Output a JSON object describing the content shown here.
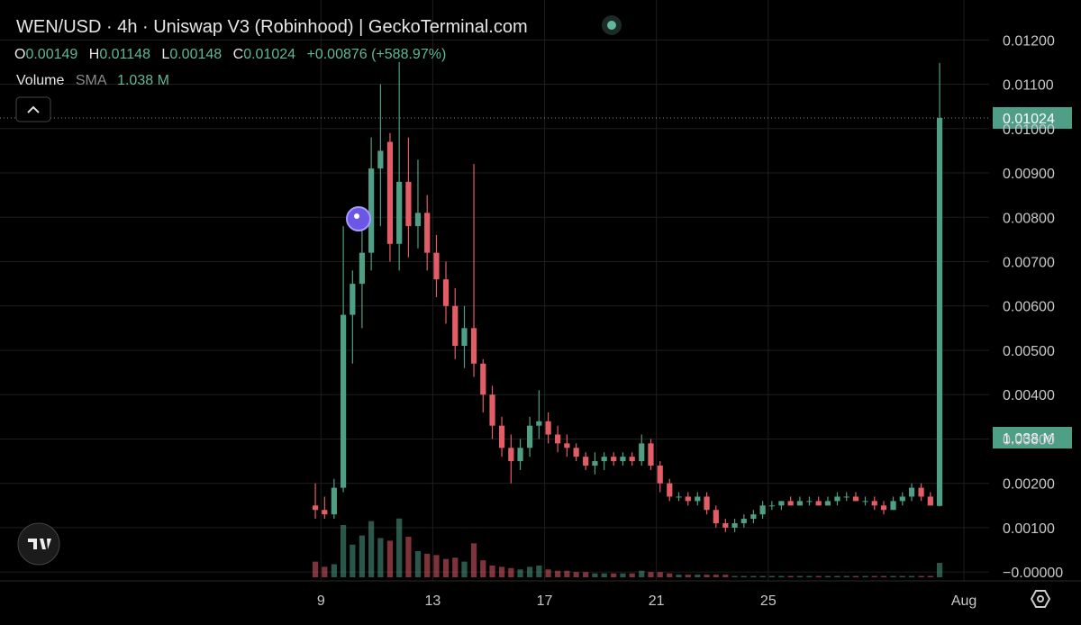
{
  "chart_data": {
    "type": "candlestick",
    "title": "WEN/USD · 4h · Uniswap V3 (Robinhood) | GeckoTerminal.com",
    "ohlc_keys": [
      "O",
      "H",
      "L",
      "C"
    ],
    "change_label": "+0.00876 (+588.97%)",
    "volume_label": "Volume",
    "sma_label": "SMA",
    "volume_sma_label": "1.038 M",
    "up_color": "#4f9e86",
    "down_color": "#e35d67",
    "x": [
      8.8,
      9.13,
      9.47,
      9.8,
      10.13,
      10.47,
      10.8,
      11.13,
      11.47,
      11.8,
      12.13,
      12.47,
      12.8,
      13.13,
      13.47,
      13.8,
      14.13,
      14.47,
      14.8,
      15.13,
      15.47,
      15.8,
      16.13,
      16.47,
      16.8,
      17.13,
      17.47,
      17.8,
      18.13,
      18.47,
      18.8,
      19.13,
      19.47,
      19.8,
      20.13,
      20.47,
      20.8,
      21.13,
      21.47,
      21.8,
      22.13,
      22.47,
      22.8,
      23.13,
      23.47,
      23.8,
      24.13,
      24.47,
      24.8,
      25.13,
      25.47,
      25.8,
      26.13,
      26.47,
      26.8,
      27.13,
      27.47,
      27.8,
      28.13,
      28.47,
      28.8,
      29.13,
      29.47,
      29.8,
      30.13,
      30.47,
      30.8,
      31.13
    ],
    "ohlc": [
      [
        0.0015,
        0.002,
        0.0012,
        0.0014
      ],
      [
        0.0014,
        0.0017,
        0.0012,
        0.0013
      ],
      [
        0.0013,
        0.0021,
        0.0012,
        0.0019
      ],
      [
        0.0019,
        0.0078,
        0.0018,
        0.0058
      ],
      [
        0.0058,
        0.0068,
        0.0047,
        0.0065
      ],
      [
        0.0065,
        0.0078,
        0.0055,
        0.0072
      ],
      [
        0.0072,
        0.0098,
        0.0068,
        0.0091
      ],
      [
        0.0091,
        0.011,
        0.0078,
        0.0095
      ],
      [
        0.0097,
        0.0099,
        0.007,
        0.0074
      ],
      [
        0.0074,
        0.0115,
        0.0068,
        0.0088
      ],
      [
        0.0088,
        0.0098,
        0.0071,
        0.0078
      ],
      [
        0.0078,
        0.0093,
        0.0073,
        0.0081
      ],
      [
        0.0081,
        0.0085,
        0.0068,
        0.0072
      ],
      [
        0.0072,
        0.0076,
        0.0062,
        0.0066
      ],
      [
        0.0066,
        0.007,
        0.0056,
        0.006
      ],
      [
        0.006,
        0.0064,
        0.0048,
        0.0051
      ],
      [
        0.0051,
        0.006,
        0.0046,
        0.0055
      ],
      [
        0.0055,
        0.0092,
        0.0044,
        0.0047
      ],
      [
        0.0047,
        0.0048,
        0.0036,
        0.004
      ],
      [
        0.004,
        0.0042,
        0.003,
        0.0033
      ],
      [
        0.0033,
        0.0035,
        0.0026,
        0.0028
      ],
      [
        0.0028,
        0.0031,
        0.002,
        0.0025
      ],
      [
        0.0025,
        0.003,
        0.0023,
        0.0028
      ],
      [
        0.0028,
        0.0035,
        0.0026,
        0.0033
      ],
      [
        0.0033,
        0.0041,
        0.003,
        0.0034
      ],
      [
        0.0034,
        0.0036,
        0.0029,
        0.0031
      ],
      [
        0.0031,
        0.0033,
        0.0027,
        0.0029
      ],
      [
        0.0029,
        0.0031,
        0.0026,
        0.0028
      ],
      [
        0.0028,
        0.0029,
        0.0025,
        0.0026
      ],
      [
        0.0026,
        0.0027,
        0.0023,
        0.0024
      ],
      [
        0.0024,
        0.0027,
        0.0022,
        0.0025
      ],
      [
        0.0025,
        0.0027,
        0.0023,
        0.0026
      ],
      [
        0.0026,
        0.0027,
        0.0024,
        0.0025
      ],
      [
        0.0025,
        0.0027,
        0.0024,
        0.0026
      ],
      [
        0.0026,
        0.0027,
        0.0024,
        0.0025
      ],
      [
        0.0025,
        0.0031,
        0.0024,
        0.0029
      ],
      [
        0.0029,
        0.003,
        0.0023,
        0.0024
      ],
      [
        0.0024,
        0.0025,
        0.0018,
        0.002
      ],
      [
        0.002,
        0.0021,
        0.0016,
        0.0017
      ],
      [
        0.0017,
        0.0018,
        0.0016,
        0.0017
      ],
      [
        0.0017,
        0.0018,
        0.0015,
        0.0016
      ],
      [
        0.0016,
        0.0018,
        0.0015,
        0.0017
      ],
      [
        0.0017,
        0.0018,
        0.0013,
        0.0014
      ],
      [
        0.0014,
        0.0015,
        0.001,
        0.0011
      ],
      [
        0.0011,
        0.0012,
        0.0009,
        0.001
      ],
      [
        0.001,
        0.0012,
        0.0009,
        0.0011
      ],
      [
        0.0011,
        0.0013,
        0.001,
        0.0012
      ],
      [
        0.0012,
        0.0014,
        0.0011,
        0.0013
      ],
      [
        0.0013,
        0.0016,
        0.0012,
        0.0015
      ],
      [
        0.0015,
        0.0016,
        0.0014,
        0.0015
      ],
      [
        0.0015,
        0.0016,
        0.0014,
        0.0016
      ],
      [
        0.0016,
        0.0017,
        0.0015,
        0.0015
      ],
      [
        0.0015,
        0.0017,
        0.0015,
        0.0016
      ],
      [
        0.0016,
        0.0017,
        0.0015,
        0.0016
      ],
      [
        0.0016,
        0.0017,
        0.0015,
        0.0015
      ],
      [
        0.0015,
        0.0017,
        0.0015,
        0.0016
      ],
      [
        0.0016,
        0.0018,
        0.0015,
        0.0017
      ],
      [
        0.0017,
        0.0018,
        0.0016,
        0.0017
      ],
      [
        0.0017,
        0.0018,
        0.0016,
        0.0016
      ],
      [
        0.0016,
        0.0017,
        0.0015,
        0.0016
      ],
      [
        0.0016,
        0.0017,
        0.0014,
        0.0015
      ],
      [
        0.0015,
        0.0016,
        0.0013,
        0.0014
      ],
      [
        0.0014,
        0.0017,
        0.0014,
        0.0016
      ],
      [
        0.0016,
        0.0018,
        0.0015,
        0.0017
      ],
      [
        0.0017,
        0.002,
        0.0016,
        0.0019
      ],
      [
        0.0019,
        0.002,
        0.0016,
        0.0017
      ],
      [
        0.0017,
        0.0018,
        0.0015,
        0.0015
      ],
      [
        0.00149,
        0.01148,
        0.00148,
        0.01024
      ]
    ],
    "volume": [
      1.2,
      0.8,
      1.0,
      4.0,
      2.5,
      3.2,
      4.3,
      3.0,
      2.8,
      4.5,
      3.1,
      2.0,
      1.8,
      1.7,
      1.4,
      1.5,
      1.2,
      2.6,
      1.3,
      0.9,
      0.8,
      0.7,
      0.6,
      0.8,
      0.9,
      0.6,
      0.5,
      0.5,
      0.4,
      0.4,
      0.3,
      0.3,
      0.3,
      0.3,
      0.3,
      0.5,
      0.4,
      0.4,
      0.3,
      0.2,
      0.2,
      0.2,
      0.2,
      0.2,
      0.2,
      0.1,
      0.1,
      0.1,
      0.1,
      0.1,
      0.1,
      0.1,
      0.1,
      0.1,
      0.1,
      0.1,
      0.1,
      0.1,
      0.1,
      0.1,
      0.1,
      0.1,
      0.1,
      0.1,
      0.1,
      0.1,
      0.1,
      1.1
    ],
    "xlim": [
      -2.48,
      32.9
    ],
    "xticks": [
      9,
      13,
      17,
      21,
      25,
      {
        "value": 32,
        "label": "Aug"
      }
    ],
    "ylim": [
      -0.0002,
      0.0129
    ],
    "yticks": [
      {
        "value": 0,
        "label": "−0.00000"
      },
      {
        "value": 0.001,
        "label": "0.00100"
      },
      {
        "value": 0.002,
        "label": "0.00200"
      },
      {
        "value": 0.003,
        "label": "0.00300"
      },
      {
        "value": 0.004,
        "label": "0.00400"
      },
      {
        "value": 0.005,
        "label": "0.00500"
      },
      {
        "value": 0.006,
        "label": "0.00600"
      },
      {
        "value": 0.007,
        "label": "0.00700"
      },
      {
        "value": 0.008,
        "label": "0.00800"
      },
      {
        "value": 0.009,
        "label": "0.00900"
      },
      {
        "value": 0.01,
        "label": "0.01000"
      },
      {
        "value": 0.011,
        "label": "0.01100"
      },
      {
        "value": 0.012,
        "label": "0.01200"
      }
    ],
    "grid": true
  }
}
